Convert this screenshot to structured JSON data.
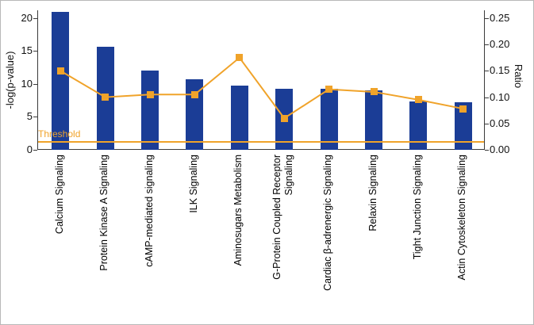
{
  "chart_data": {
    "type": "bar",
    "title": "",
    "xlabel": "",
    "ylabel_left": "-log(p-value)",
    "ylabel_right": "Ratio",
    "grid": false,
    "legend_position": "none",
    "categories": [
      "Calcium Signaling",
      "Protein Kinase A Signaling",
      "cAMP-mediated signaling",
      "ILK Signaling",
      "Aminosugars Metabolism",
      "G-Protein Coupled Receptor Signaling",
      "Cardiac β-adrenergic Signaling",
      "Relaxin Signaling",
      "Tight Junction Signaling",
      "Actin Cytoskeleton Signaling"
    ],
    "series": [
      {
        "name": "-log(p-value)",
        "type": "bar",
        "axis": "left",
        "color": "#1B3D96",
        "values": [
          21.0,
          15.7,
          12.1,
          10.7,
          9.7,
          9.3,
          9.3,
          9.0,
          7.3,
          7.2
        ]
      },
      {
        "name": "Ratio",
        "type": "line",
        "axis": "right",
        "color": "#F0A32A",
        "values": [
          0.15,
          0.1,
          0.105,
          0.105,
          0.175,
          0.06,
          0.115,
          0.11,
          0.095,
          0.078
        ]
      }
    ],
    "left_axis": {
      "min": 0,
      "max": 21.2,
      "ticks": [
        0,
        5,
        10,
        15,
        20
      ]
    },
    "right_axis": {
      "min": 0,
      "max": 0.265,
      "ticks": [
        "0.00",
        "0.05",
        "0.10",
        "0.15",
        "0.20",
        "0.25"
      ]
    },
    "threshold": {
      "value": 1.25,
      "label": "Threshold",
      "color": "#F0A32A"
    }
  }
}
